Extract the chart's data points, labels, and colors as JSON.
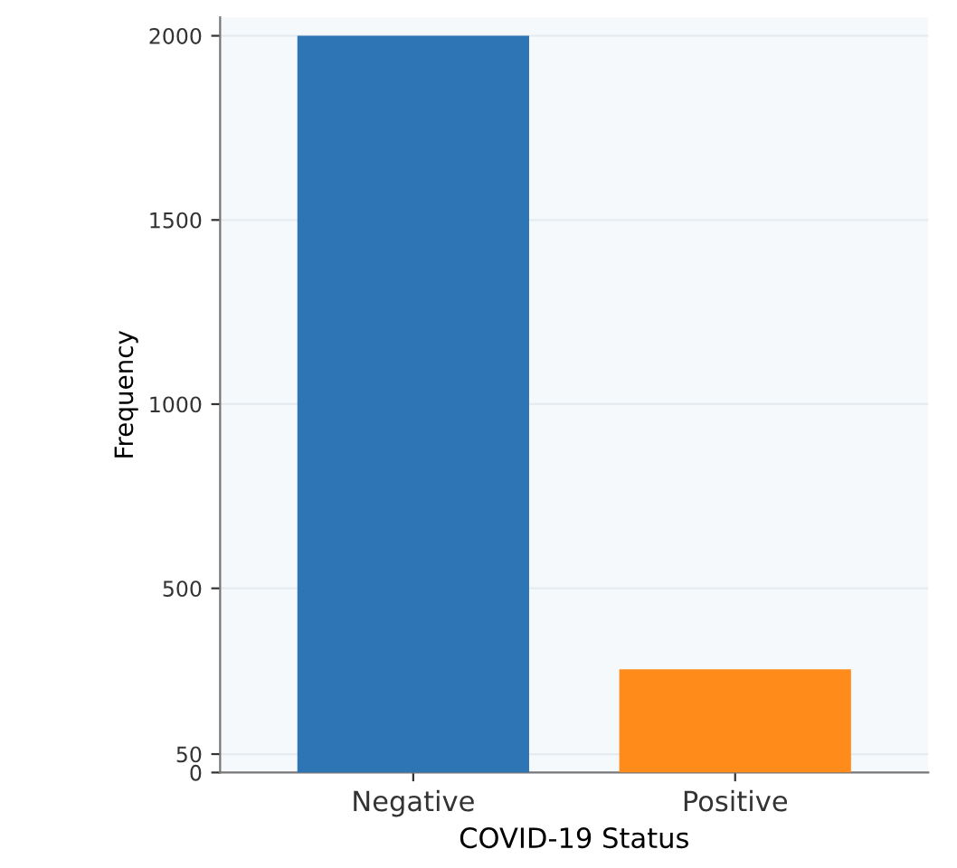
{
  "chart_data": {
    "type": "bar",
    "xlabel": "COVID-19 Status",
    "ylabel": "Frequency",
    "categories": [
      "Negative",
      "Positive"
    ],
    "values": [
      2000,
      280
    ],
    "colors": [
      "#2e75b6",
      "#ff8c1a"
    ],
    "ylim": [
      0,
      2050
    ],
    "yticks": [
      0,
      50,
      500,
      1000,
      1500,
      2000
    ],
    "grid": "y"
  }
}
